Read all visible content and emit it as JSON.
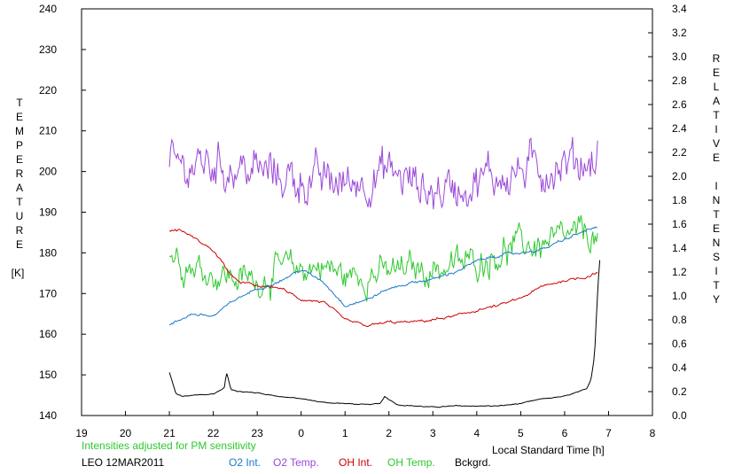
{
  "chart_data": {
    "type": "line",
    "left_axis": {
      "label_letters": [
        "T",
        "E",
        "M",
        "P",
        "E",
        "R",
        "A",
        "T",
        "U",
        "R",
        "E"
      ],
      "unit": "[K]",
      "range": [
        140,
        240
      ],
      "ticks": [
        "140",
        "150",
        "160",
        "170",
        "180",
        "190",
        "200",
        "210",
        "220",
        "230",
        "240"
      ]
    },
    "right_axis": {
      "label_word1": [
        "R",
        "E",
        "L",
        "A",
        "T",
        "I",
        "V",
        "E"
      ],
      "label_word2": [
        "I",
        "N",
        "T",
        "E",
        "N",
        "S",
        "I",
        "T",
        "Y"
      ],
      "range": [
        0.0,
        3.4
      ],
      "ticks": [
        "0.0",
        "0.2",
        "0.4",
        "0.6",
        "0.8",
        "1.0",
        "1.2",
        "1.4",
        "1.6",
        "1.8",
        "2.0",
        "2.2",
        "2.4",
        "2.6",
        "2.8",
        "3.0",
        "3.2",
        "3.4"
      ]
    },
    "x_axis": {
      "label": "Local Standard Time [h]",
      "range": [
        19,
        32
      ],
      "ticks": [
        "19",
        "20",
        "21",
        "22",
        "23",
        "0",
        "1",
        "2",
        "3",
        "4",
        "5",
        "6",
        "7",
        "8"
      ]
    },
    "note": "Intensities adjusted for PM sensitivity",
    "station": "LEO 12MAR2011",
    "legend": [
      "O2 Int.",
      "O2 Temp.",
      "OH Int.",
      "OH Temp.",
      "Bckgrd."
    ],
    "colors": {
      "o2_int": "#1a78c8",
      "o2_temp": "#9a48d8",
      "oh_int": "#cc0000",
      "oh_temp": "#2ec82e",
      "bckgrd": "#000000",
      "note": "#2ec82e"
    },
    "series": [
      {
        "name": "O2 Int.",
        "axis": "right",
        "noise": 0.015,
        "x": [
          21.0,
          21.5,
          22.0,
          22.5,
          23.0,
          23.5,
          24.0,
          24.5,
          25.0,
          25.5,
          26.0,
          26.5,
          27.0,
          27.5,
          28.0,
          28.5,
          29.0,
          29.5,
          30.0,
          30.5,
          30.75
        ],
        "y": [
          0.75,
          0.85,
          0.83,
          0.97,
          1.06,
          1.12,
          1.22,
          1.12,
          0.92,
          0.97,
          1.06,
          1.11,
          1.14,
          1.2,
          1.29,
          1.34,
          1.36,
          1.39,
          1.47,
          1.55,
          1.57
        ]
      },
      {
        "name": "O2 Temp.",
        "axis": "left",
        "noise": 7,
        "x": [
          21.0,
          22.0,
          23.0,
          24.0,
          25.0,
          26.0,
          27.0,
          28.0,
          29.0,
          30.0,
          30.75
        ],
        "y": [
          201,
          202,
          200,
          198,
          197,
          200,
          195,
          198,
          200,
          202,
          203
        ]
      },
      {
        "name": "OH Int.",
        "axis": "right",
        "noise": 0.015,
        "x": [
          21.0,
          21.25,
          21.5,
          22.0,
          22.5,
          23.0,
          23.5,
          24.0,
          24.5,
          25.0,
          25.5,
          26.0,
          26.5,
          27.0,
          27.5,
          28.0,
          28.5,
          29.0,
          29.5,
          30.0,
          30.5,
          30.75
        ],
        "y": [
          1.55,
          1.55,
          1.5,
          1.38,
          1.13,
          1.08,
          1.07,
          0.97,
          0.95,
          0.8,
          0.75,
          0.78,
          0.78,
          0.8,
          0.83,
          0.88,
          0.92,
          0.98,
          1.08,
          1.13,
          1.16,
          1.2
        ]
      },
      {
        "name": "OH Temp.",
        "axis": "left",
        "noise": 5,
        "x": [
          21.0,
          21.5,
          22.0,
          22.5,
          23.0,
          23.5,
          24.0,
          24.5,
          25.0,
          25.5,
          26.0,
          26.5,
          27.0,
          27.5,
          28.0,
          28.5,
          29.0,
          29.5,
          30.0,
          30.5,
          30.75
        ],
        "y": [
          180,
          177,
          175,
          174,
          173,
          176,
          176,
          177,
          174,
          175,
          175,
          176,
          176,
          177,
          178,
          180,
          182,
          182,
          183,
          185,
          183
        ]
      },
      {
        "name": "Bckgrd.",
        "axis": "right",
        "noise": 0.005,
        "x": [
          21.0,
          21.15,
          21.3,
          21.6,
          22.0,
          22.25,
          22.3,
          22.4,
          22.6,
          23.0,
          23.5,
          24.0,
          24.5,
          25.0,
          25.5,
          25.8,
          25.9,
          26.2,
          27.0,
          27.5,
          28.0,
          28.5,
          29.0,
          29.5,
          30.0,
          30.5,
          30.6,
          30.68,
          30.72,
          30.76,
          30.8
        ],
        "y": [
          0.36,
          0.18,
          0.16,
          0.17,
          0.18,
          0.23,
          0.36,
          0.22,
          0.2,
          0.19,
          0.16,
          0.14,
          0.11,
          0.1,
          0.09,
          0.1,
          0.16,
          0.09,
          0.07,
          0.08,
          0.08,
          0.08,
          0.1,
          0.14,
          0.16,
          0.22,
          0.3,
          0.5,
          0.8,
          1.1,
          1.3
        ]
      }
    ]
  }
}
